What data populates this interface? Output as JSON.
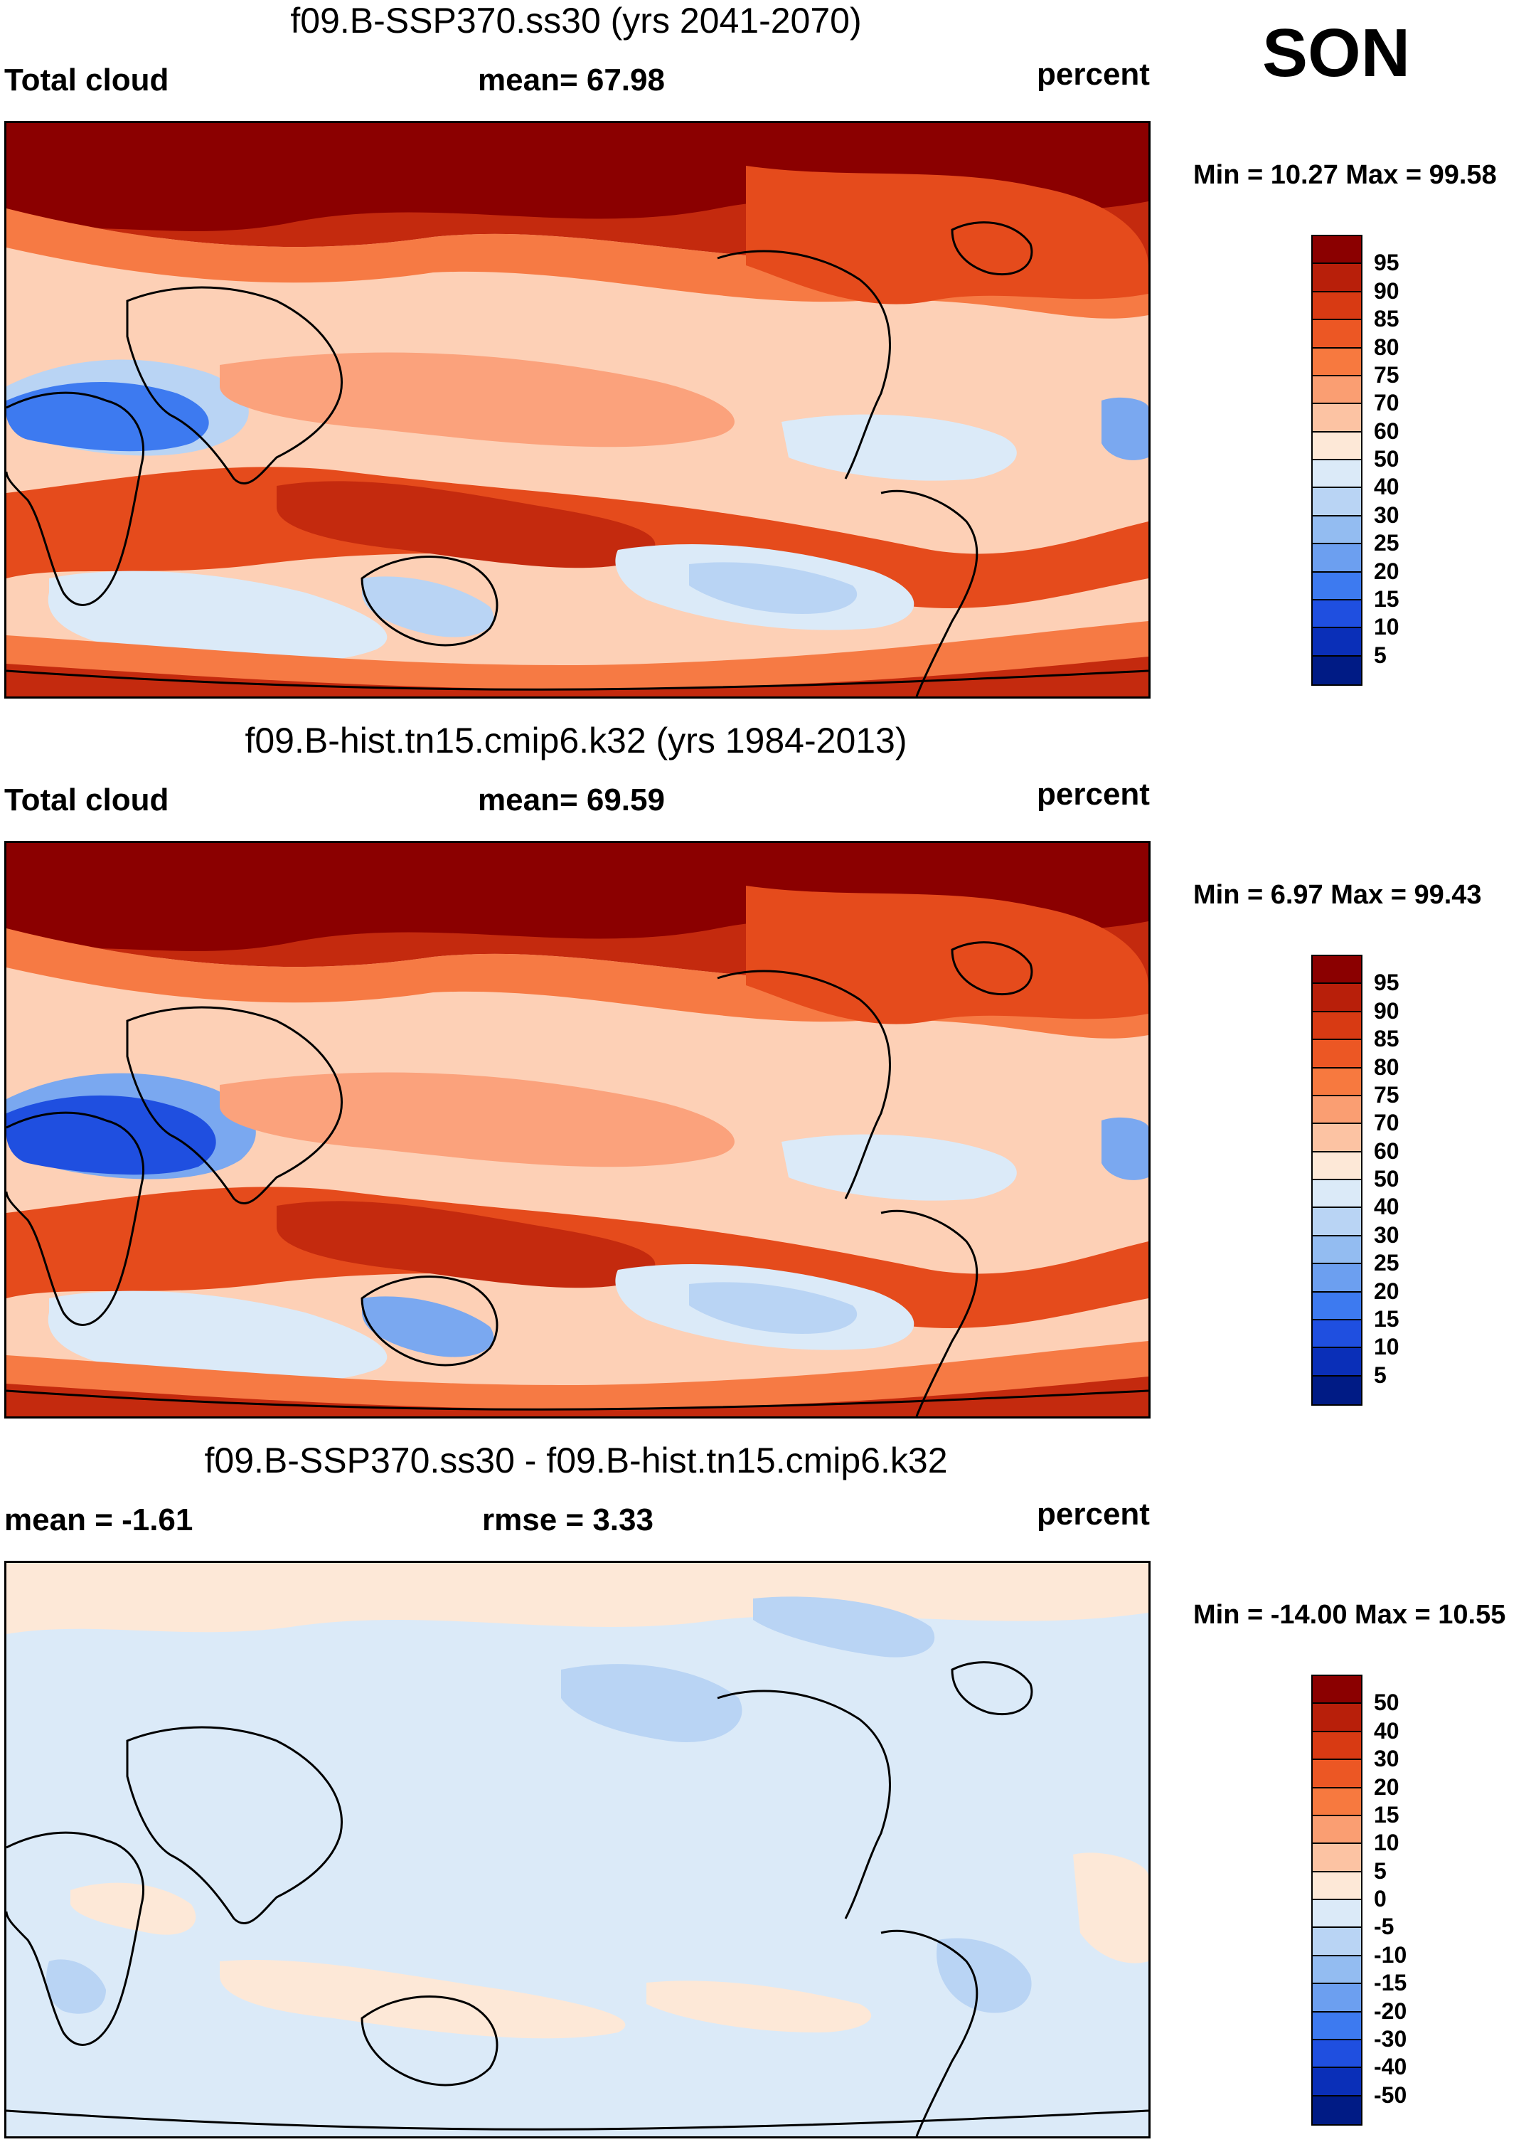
{
  "season": "SON",
  "panels": [
    {
      "title": "f09.B-SSP370.ss30 (yrs 2041-2070)",
      "left_label": "Total cloud",
      "center_label": "mean=  67.98",
      "right_label": "percent",
      "minmax": "Min =  10.27 Max =  99.58",
      "colorbar_labels": [
        "95",
        "90",
        "85",
        "80",
        "75",
        "70",
        "60",
        "50",
        "40",
        "30",
        "25",
        "20",
        "15",
        "10",
        "5"
      ],
      "colorbar_colors": [
        "#8b0000",
        "#b81f0a",
        "#d83a13",
        "#ec5724",
        "#f7793f",
        "#fa9e72",
        "#fcc3a3",
        "#fde8d7",
        "#dbeaf8",
        "#b9d4f4",
        "#93bcf1",
        "#6c9ff0",
        "#3d7af0",
        "#1f4fe0",
        "#0a2fb8",
        "#001b85"
      ]
    },
    {
      "title": "f09.B-hist.tn15.cmip6.k32 (yrs 1984-2013)",
      "left_label": "Total cloud",
      "center_label": "mean=  69.59",
      "right_label": "percent",
      "minmax": "Min =   6.97 Max =  99.43",
      "colorbar_labels": [
        "95",
        "90",
        "85",
        "80",
        "75",
        "70",
        "60",
        "50",
        "40",
        "30",
        "25",
        "20",
        "15",
        "10",
        "5"
      ],
      "colorbar_colors": [
        "#8b0000",
        "#b81f0a",
        "#d83a13",
        "#ec5724",
        "#f7793f",
        "#fa9e72",
        "#fcc3a3",
        "#fde8d7",
        "#dbeaf8",
        "#b9d4f4",
        "#93bcf1",
        "#6c9ff0",
        "#3d7af0",
        "#1f4fe0",
        "#0a2fb8",
        "#001b85"
      ]
    },
    {
      "title": "f09.B-SSP370.ss30 - f09.B-hist.tn15.cmip6.k32",
      "left_label": "mean =  -1.61",
      "center_label": "rmse =   3.33",
      "right_label": "percent",
      "minmax": "Min = -14.00 Max =  10.55",
      "colorbar_labels": [
        "50",
        "40",
        "30",
        "20",
        "15",
        "10",
        "5",
        "0",
        "-5",
        "-10",
        "-15",
        "-20",
        "-30",
        "-40",
        "-50"
      ],
      "colorbar_colors": [
        "#8b0000",
        "#b81f0a",
        "#d83a13",
        "#ec5724",
        "#f7793f",
        "#fa9e72",
        "#fcc3a3",
        "#fde8d7",
        "#dbeaf8",
        "#b9d4f4",
        "#93bcf1",
        "#6c9ff0",
        "#3d7af0",
        "#1f4fe0",
        "#0a2fb8",
        "#001b85"
      ]
    }
  ],
  "map_colors": {
    "deep_red": "#8b0000",
    "red": "#c42a0e",
    "orange_red": "#e54b1c",
    "orange": "#f67a44",
    "salmon": "#fba27c",
    "peach": "#fdd0b6",
    "cream": "#fde8d7",
    "pale_blue": "#dbeaf8",
    "light_blue": "#b9d4f4",
    "blue": "#7aa8f0",
    "strong_blue": "#3d7af0",
    "navy": "#1f4fe0"
  }
}
